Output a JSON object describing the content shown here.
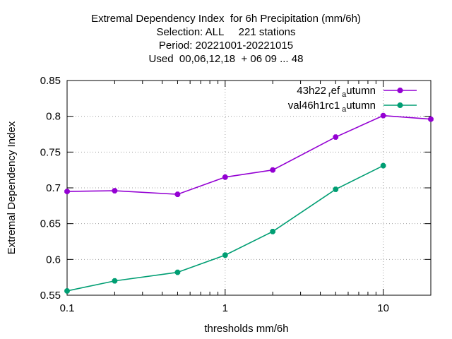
{
  "chart_data": {
    "type": "line",
    "title_lines": [
      "Extremal Dependency Index  for 6h Precipitation (mm/6h)",
      "Selection: ALL     221 stations",
      "Period: 20221001-20221015",
      "Used  00,06,12,18  + 06 09 ... 48"
    ],
    "xlabel": "thresholds mm/6h",
    "ylabel": "Extremal Dependency Index",
    "x_scale": "log",
    "xlim": [
      0.1,
      20
    ],
    "ylim": [
      0.55,
      0.85
    ],
    "x_ticks": [
      0.1,
      1,
      10
    ],
    "x_tick_labels": [
      "0.1",
      "1",
      "10"
    ],
    "y_ticks": [
      0.55,
      0.6,
      0.65,
      0.7,
      0.75,
      0.8,
      0.85
    ],
    "y_tick_labels": [
      "0.55",
      "0.6",
      "0.65",
      "0.7",
      "0.75",
      "0.8",
      "0.85"
    ],
    "grid": true,
    "legend_position": "top-right",
    "series": [
      {
        "name_main": "43h22",
        "name_sub1": "r",
        "name_mid": "ef",
        "name_sub2": "a",
        "name_end": "utumn",
        "color": "#9400d3",
        "x": [
          0.1,
          0.2,
          0.5,
          1,
          2,
          5,
          10,
          20
        ],
        "y": [
          0.695,
          0.696,
          0.691,
          0.715,
          0.725,
          0.771,
          0.801,
          0.796
        ]
      },
      {
        "name_main": "val46h1rc1",
        "name_sub1": "",
        "name_mid": "",
        "name_sub2": "a",
        "name_end": "utumn",
        "color": "#009e73",
        "x": [
          0.1,
          0.2,
          0.5,
          1,
          2,
          5,
          10
        ],
        "y": [
          0.556,
          0.57,
          0.582,
          0.606,
          0.639,
          0.698,
          0.731
        ]
      }
    ]
  }
}
